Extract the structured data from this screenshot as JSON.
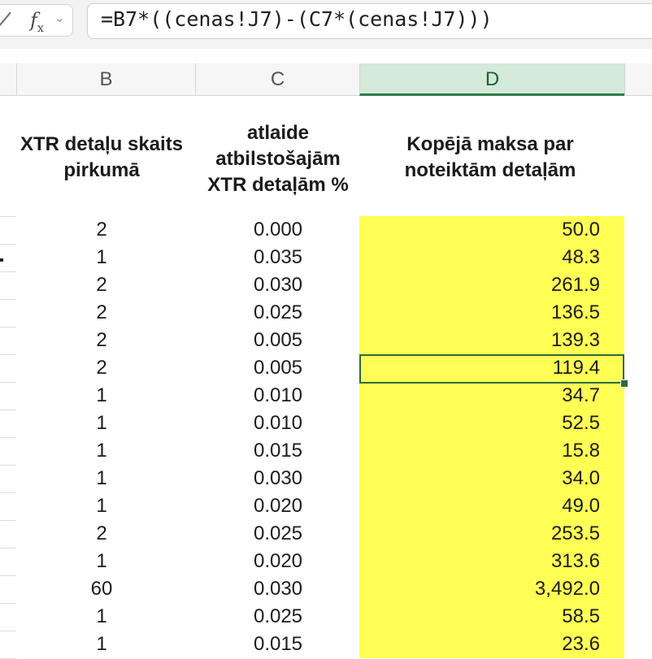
{
  "formula_bar": {
    "fx_label": "f",
    "fx_sub": "x",
    "chevron": "⌄",
    "formula": "=B7*((cenas!J7)-(C7*(cenas!J7)))"
  },
  "columns": [
    {
      "id": "B",
      "label": "B"
    },
    {
      "id": "C",
      "label": "C"
    },
    {
      "id": "D",
      "label": "D"
    }
  ],
  "headers": {
    "B": "XTR detaļu skaits pirkumā",
    "C": "atlaide atbilstošajām XTR detaļām %",
    "D": "Kopējā maksa par noteiktām detaļām"
  },
  "rows": [
    {
      "b": "2",
      "c": "0.000",
      "d": "50.0"
    },
    {
      "b": "1",
      "c": "0.035",
      "d": "48.3"
    },
    {
      "b": "2",
      "c": "0.030",
      "d": "261.9"
    },
    {
      "b": "2",
      "c": "0.025",
      "d": "136.5"
    },
    {
      "b": "2",
      "c": "0.005",
      "d": "139.3"
    },
    {
      "b": "2",
      "c": "0.005",
      "d": "119.4"
    },
    {
      "b": "1",
      "c": "0.010",
      "d": "34.7"
    },
    {
      "b": "1",
      "c": "0.010",
      "d": "52.5"
    },
    {
      "b": "1",
      "c": "0.015",
      "d": "15.8"
    },
    {
      "b": "1",
      "c": "0.030",
      "d": "34.0"
    },
    {
      "b": "1",
      "c": "0.020",
      "d": "49.0"
    },
    {
      "b": "2",
      "c": "0.025",
      "d": "253.5"
    },
    {
      "b": "1",
      "c": "0.020",
      "d": "313.6"
    },
    {
      "b": "60",
      "c": "0.030",
      "d": "3,492.0"
    },
    {
      "b": "1",
      "c": "0.025",
      "d": "58.5"
    },
    {
      "b": "1",
      "c": "0.015",
      "d": "23.6"
    }
  ],
  "selected_row_index": 5,
  "colors": {
    "highlight": "#ffff54",
    "selection": "#2d6a3e",
    "selected_column_header": "#d3e9d9"
  }
}
